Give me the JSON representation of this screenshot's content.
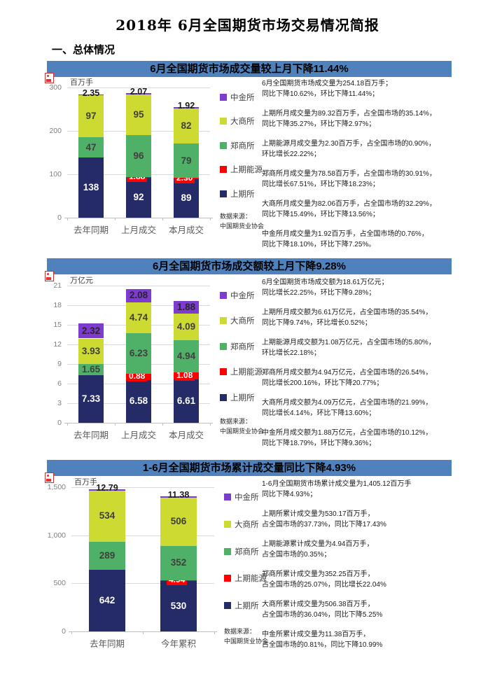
{
  "page": {
    "title": "2018年 6月全国期货市场交易情况简报",
    "section_heading": "一、总体情况"
  },
  "colors": {
    "header_bar": "#4f81bd",
    "shfe_navy": "#242b66",
    "ine_red": "#ff0000",
    "czce_green": "#4fb168",
    "dce_yellow": "#cdda31",
    "cffex_purple": "#7e3bd0"
  },
  "icons": {
    "chart_placeholder": "broken-image-icon"
  },
  "sections": [
    {
      "header": "6月全国期货市场成交量较上月下降11.44%",
      "paragraphs": [
        "6月全国期货市场成交量为254.18百万手；\n同比下降10.62%，环比下降11.44%；",
        "上期所月成交量为89.32百万手，占全国市场的35.14%，\n同比下降35.27%，环比下降2.97%；",
        "上期能源月成交量为2.30百万手，占全国市场的0.90%，\n环比增长22.22%；",
        "郑商所月成交量为78.58百万手，占全国市场的30.91%，\n同比增长67.51%，环比下降18.23%；",
        "大商所月成交量为82.06百万手，占全国市场的32.29%，\n同比下降15.49%，环比下降13.56%；",
        "中金所月成交量为1.92百万手，占全国市场的0.76%，\n同比下降18.10%，环比下降7.25%。"
      ]
    },
    {
      "header": "6月全国期货市场成交额较上月下降9.28%",
      "paragraphs": [
        "6月全国期货市场成交额为18.61万亿元；\n同比增长22.25%，环比下降9.28%；",
        "上期所月成交额为6.61万亿元，占全国市场的35.54%，\n同比下降9.74%，环比增长0.52%；",
        "上期能源月成交额为1.08万亿元，占全国市场的5.80%，\n环比增长22.18%；",
        "郑商所月成交额为4.94万亿元，占全国市场的26.54%，\n同比增长200.16%，环比下降20.77%；",
        "大商所月成交额为4.09万亿元，占全国市场的21.99%，\n同比增长4.14%，环比下降13.60%；",
        "中金所月成交额为1.88万亿元，占全国市场的10.12%，\n同比下降18.79%，环比下降9.36%；"
      ]
    },
    {
      "header": "1-6月全国期货市场累计成交量同比下降4.93%",
      "paragraphs": [
        "1-6月全国期货市场累计成交量为1,405.12百万手\n同比下降4.93%；",
        "上期所累计成交量为530.17百万手，\n占全国市场的37.73%，同比下降17.43%",
        "上期能源累计成交量为4.94百万手，\n占全国市场的0.35%；",
        "郑商所累计成交量为352.25百万手，\n占全国市场的25.07%，同比增长22.04%",
        "大商所累计成交量为506.38百万手，\n占全国市场的36.04%，同比下降5.25%",
        "中金所累计成交量为11.38百万手，\n占全国市场的0.81%，同比下降10.99%"
      ]
    }
  ],
  "chart_data": [
    {
      "type": "bar",
      "stacked": true,
      "title": "6月全国期货市场成交量较上月下降11.44%",
      "ylabel": "百万手",
      "ylim": [
        0,
        300
      ],
      "yticks": [
        0,
        100,
        200,
        300
      ],
      "ytick_labels": [
        "0",
        "100",
        "200",
        "300"
      ],
      "categories": [
        "去年同期",
        "上月成交",
        "本月成交"
      ],
      "grid": true,
      "legend_position": "right",
      "series": [
        {
          "name": "上期所",
          "color": "#242b66",
          "label_color": "#ffffff",
          "values": [
            138,
            92,
            89
          ],
          "labels": [
            "138",
            "92",
            "89"
          ],
          "label_style": "inside"
        },
        {
          "name": "上期能源",
          "color": "#ff0000",
          "label_color": "#ffffff",
          "values": [
            0,
            1.88,
            2.3
          ],
          "labels": [
            "",
            "1.88",
            "2.30"
          ],
          "label_style": "chip"
        },
        {
          "name": "郑商所",
          "color": "#4fb168",
          "label_color": "#3f3f3f",
          "values": [
            47,
            96,
            79
          ],
          "labels": [
            "47",
            "96",
            "79"
          ],
          "label_style": "inside"
        },
        {
          "name": "大商所",
          "color": "#cdda31",
          "label_color": "#3f3f3f",
          "values": [
            97,
            95,
            82
          ],
          "labels": [
            "97",
            "95",
            "82"
          ],
          "label_style": "inside"
        },
        {
          "name": "中金所",
          "color": "#7e3bd0",
          "label_color": "#1a1a1a",
          "values": [
            2.35,
            2.07,
            1.92
          ],
          "labels": [
            "2.35",
            "2.07",
            "1.92"
          ],
          "label_style": "above"
        }
      ],
      "source": "数据来源：\n中国期货业协会"
    },
    {
      "type": "bar",
      "stacked": true,
      "title": "6月全国期货市场成交额较上月下降9.28%",
      "ylabel": "万亿元",
      "ylim": [
        0,
        21
      ],
      "yticks": [
        0,
        3,
        6,
        9,
        12,
        15,
        18,
        21
      ],
      "ytick_labels": [
        "0",
        "3",
        "6",
        "9",
        "12",
        "15",
        "18",
        "21"
      ],
      "categories": [
        "去年同期",
        "上月成交",
        "本月成交"
      ],
      "grid": true,
      "legend_position": "right",
      "series": [
        {
          "name": "上期所",
          "color": "#242b66",
          "label_color": "#ffffff",
          "values": [
            7.33,
            6.58,
            6.61
          ],
          "labels": [
            "7.33",
            "6.58",
            "6.61"
          ],
          "label_style": "inside"
        },
        {
          "name": "上期能源",
          "color": "#ff0000",
          "label_color": "#ffffff",
          "values": [
            0,
            0.88,
            1.08
          ],
          "labels": [
            "",
            "0.88",
            "1.08"
          ],
          "label_style": "chip"
        },
        {
          "name": "郑商所",
          "color": "#4fb168",
          "label_color": "#3f3f3f",
          "values": [
            1.65,
            6.23,
            4.94
          ],
          "labels": [
            "1.65",
            "6.23",
            "4.94"
          ],
          "label_style": "inside"
        },
        {
          "name": "大商所",
          "color": "#cdda31",
          "label_color": "#3f3f3f",
          "values": [
            3.93,
            4.74,
            4.09
          ],
          "labels": [
            "3.93",
            "4.74",
            "4.09"
          ],
          "label_style": "inside"
        },
        {
          "name": "中金所",
          "color": "#7e3bd0",
          "label_color": "#262626",
          "values": [
            2.32,
            2.08,
            1.88
          ],
          "labels": [
            "2.32",
            "2.08",
            "1.88"
          ],
          "label_style": "inside"
        }
      ],
      "source": "数据来源：\n中国期货业协会"
    },
    {
      "type": "bar",
      "stacked": true,
      "title": "1-6月全国期货市场累计成交量同比下降4.93%",
      "ylabel": "百万手",
      "ylim": [
        0,
        1500
      ],
      "yticks": [
        0,
        500,
        1000,
        1500
      ],
      "ytick_labels": [
        "0",
        "500",
        "1,000",
        "1,500"
      ],
      "categories": [
        "去年同期",
        "今年累积"
      ],
      "grid": true,
      "legend_position": "right",
      "series": [
        {
          "name": "上期所",
          "color": "#242b66",
          "label_color": "#ffffff",
          "values": [
            642,
            530
          ],
          "labels": [
            "642",
            "530"
          ],
          "label_style": "inside"
        },
        {
          "name": "上期能源",
          "color": "#ff0000",
          "label_color": "#ffffff",
          "values": [
            0,
            4.94
          ],
          "labels": [
            "",
            "4.94"
          ],
          "label_style": "chip"
        },
        {
          "name": "郑商所",
          "color": "#4fb168",
          "label_color": "#3f3f3f",
          "values": [
            289,
            352
          ],
          "labels": [
            "289",
            "352"
          ],
          "label_style": "inside"
        },
        {
          "name": "大商所",
          "color": "#cdda31",
          "label_color": "#3f3f3f",
          "values": [
            534,
            506
          ],
          "labels": [
            "534",
            "506"
          ],
          "label_style": "inside"
        },
        {
          "name": "中金所",
          "color": "#7e3bd0",
          "label_color": "#1a1a1a",
          "values": [
            12.79,
            11.38
          ],
          "labels": [
            "12.79",
            "11.38"
          ],
          "label_style": "above"
        }
      ],
      "source": "数据来源：\n中国期货业协会"
    }
  ]
}
